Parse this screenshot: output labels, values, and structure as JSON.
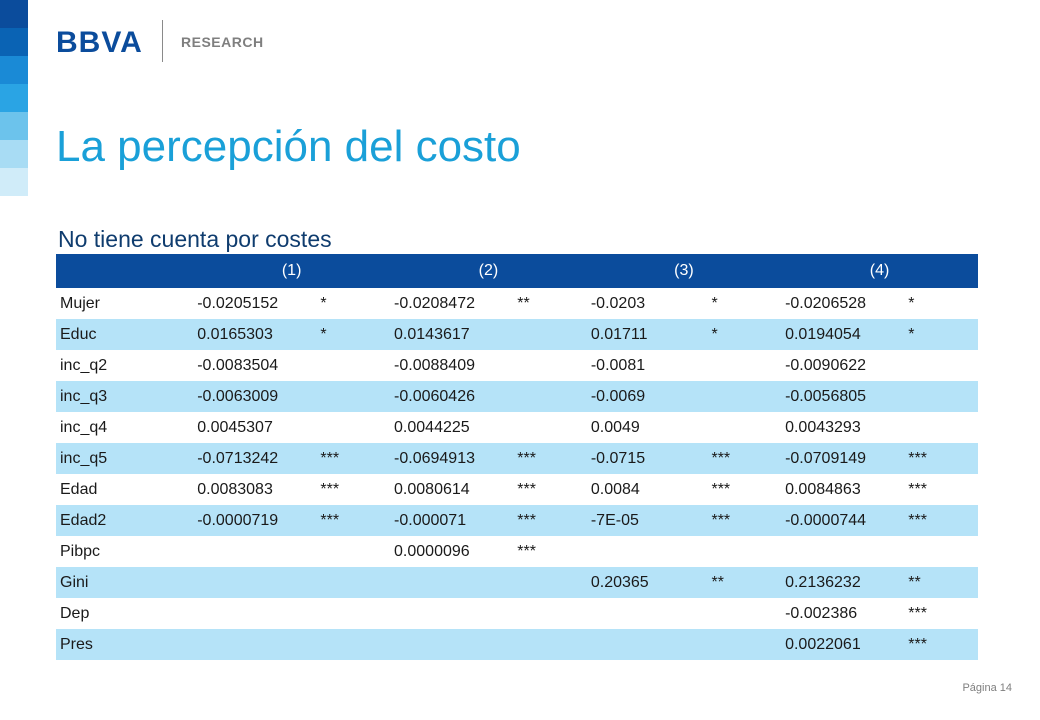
{
  "header": {
    "logo_text": "BBVA",
    "section_label": "RESEARCH",
    "stripe_colors": [
      "#0b4c9c",
      "#0a63b4",
      "#1a8ad6",
      "#2aa4e4",
      "#6cc3ec",
      "#a8dcf4",
      "#d0ecf9"
    ]
  },
  "slide": {
    "title": "La percepción del costo",
    "subtitle": "No tiene cuenta por costes",
    "page_label": "Página 14"
  },
  "colors": {
    "title": "#1aa0d8",
    "header_row": "#0b4c9c",
    "alt_row": "#b5e3f8",
    "logo": "#0b4c9c"
  },
  "table": {
    "columns": [
      "",
      "(1)",
      "(2)",
      "(3)",
      "(4)"
    ],
    "rows": [
      {
        "label": "Mujer",
        "cells": [
          [
            "-0.0205152",
            "*"
          ],
          [
            "-0.0208472",
            "**"
          ],
          [
            "-0.0203",
            "*"
          ],
          [
            "-0.0206528",
            "*"
          ]
        ]
      },
      {
        "label": "Educ",
        "cells": [
          [
            "0.0165303",
            "*"
          ],
          [
            "0.0143617",
            ""
          ],
          [
            "0.01711",
            "*"
          ],
          [
            "0.0194054",
            "*"
          ]
        ]
      },
      {
        "label": "inc_q2",
        "cells": [
          [
            "-0.0083504",
            ""
          ],
          [
            "-0.0088409",
            ""
          ],
          [
            "-0.0081",
            ""
          ],
          [
            "-0.0090622",
            ""
          ]
        ]
      },
      {
        "label": "inc_q3",
        "cells": [
          [
            "-0.0063009",
            ""
          ],
          [
            "-0.0060426",
            ""
          ],
          [
            "-0.0069",
            ""
          ],
          [
            "-0.0056805",
            ""
          ]
        ]
      },
      {
        "label": "inc_q4",
        "cells": [
          [
            "0.0045307",
            ""
          ],
          [
            "0.0044225",
            ""
          ],
          [
            "0.0049",
            ""
          ],
          [
            "0.0043293",
            ""
          ]
        ]
      },
      {
        "label": "inc_q5",
        "cells": [
          [
            "-0.0713242",
            "***"
          ],
          [
            "-0.0694913",
            "***"
          ],
          [
            "-0.0715",
            "***"
          ],
          [
            "-0.0709149",
            "***"
          ]
        ]
      },
      {
        "label": "Edad",
        "cells": [
          [
            "0.0083083",
            "***"
          ],
          [
            "0.0080614",
            "***"
          ],
          [
            "0.0084",
            "***"
          ],
          [
            "0.0084863",
            "***"
          ]
        ]
      },
      {
        "label": "Edad2",
        "cells": [
          [
            "-0.0000719",
            "***"
          ],
          [
            "-0.000071",
            "***"
          ],
          [
            "-7E-05",
            "***"
          ],
          [
            "-0.0000744",
            "***"
          ]
        ]
      },
      {
        "label": "Pibpc",
        "cells": [
          [
            "",
            ""
          ],
          [
            "0.0000096",
            "***"
          ],
          [
            "",
            ""
          ],
          [
            "",
            ""
          ]
        ]
      },
      {
        "label": "Gini",
        "cells": [
          [
            "",
            ""
          ],
          [
            "",
            ""
          ],
          [
            "0.20365",
            "**"
          ],
          [
            "0.2136232",
            "**"
          ]
        ]
      },
      {
        "label": "Dep",
        "cells": [
          [
            "",
            ""
          ],
          [
            "",
            ""
          ],
          [
            "",
            ""
          ],
          [
            "-0.002386",
            "***"
          ]
        ]
      },
      {
        "label": "Pres",
        "cells": [
          [
            "",
            ""
          ],
          [
            "",
            ""
          ],
          [
            "",
            ""
          ],
          [
            "0.0022061",
            "***"
          ]
        ]
      }
    ]
  }
}
